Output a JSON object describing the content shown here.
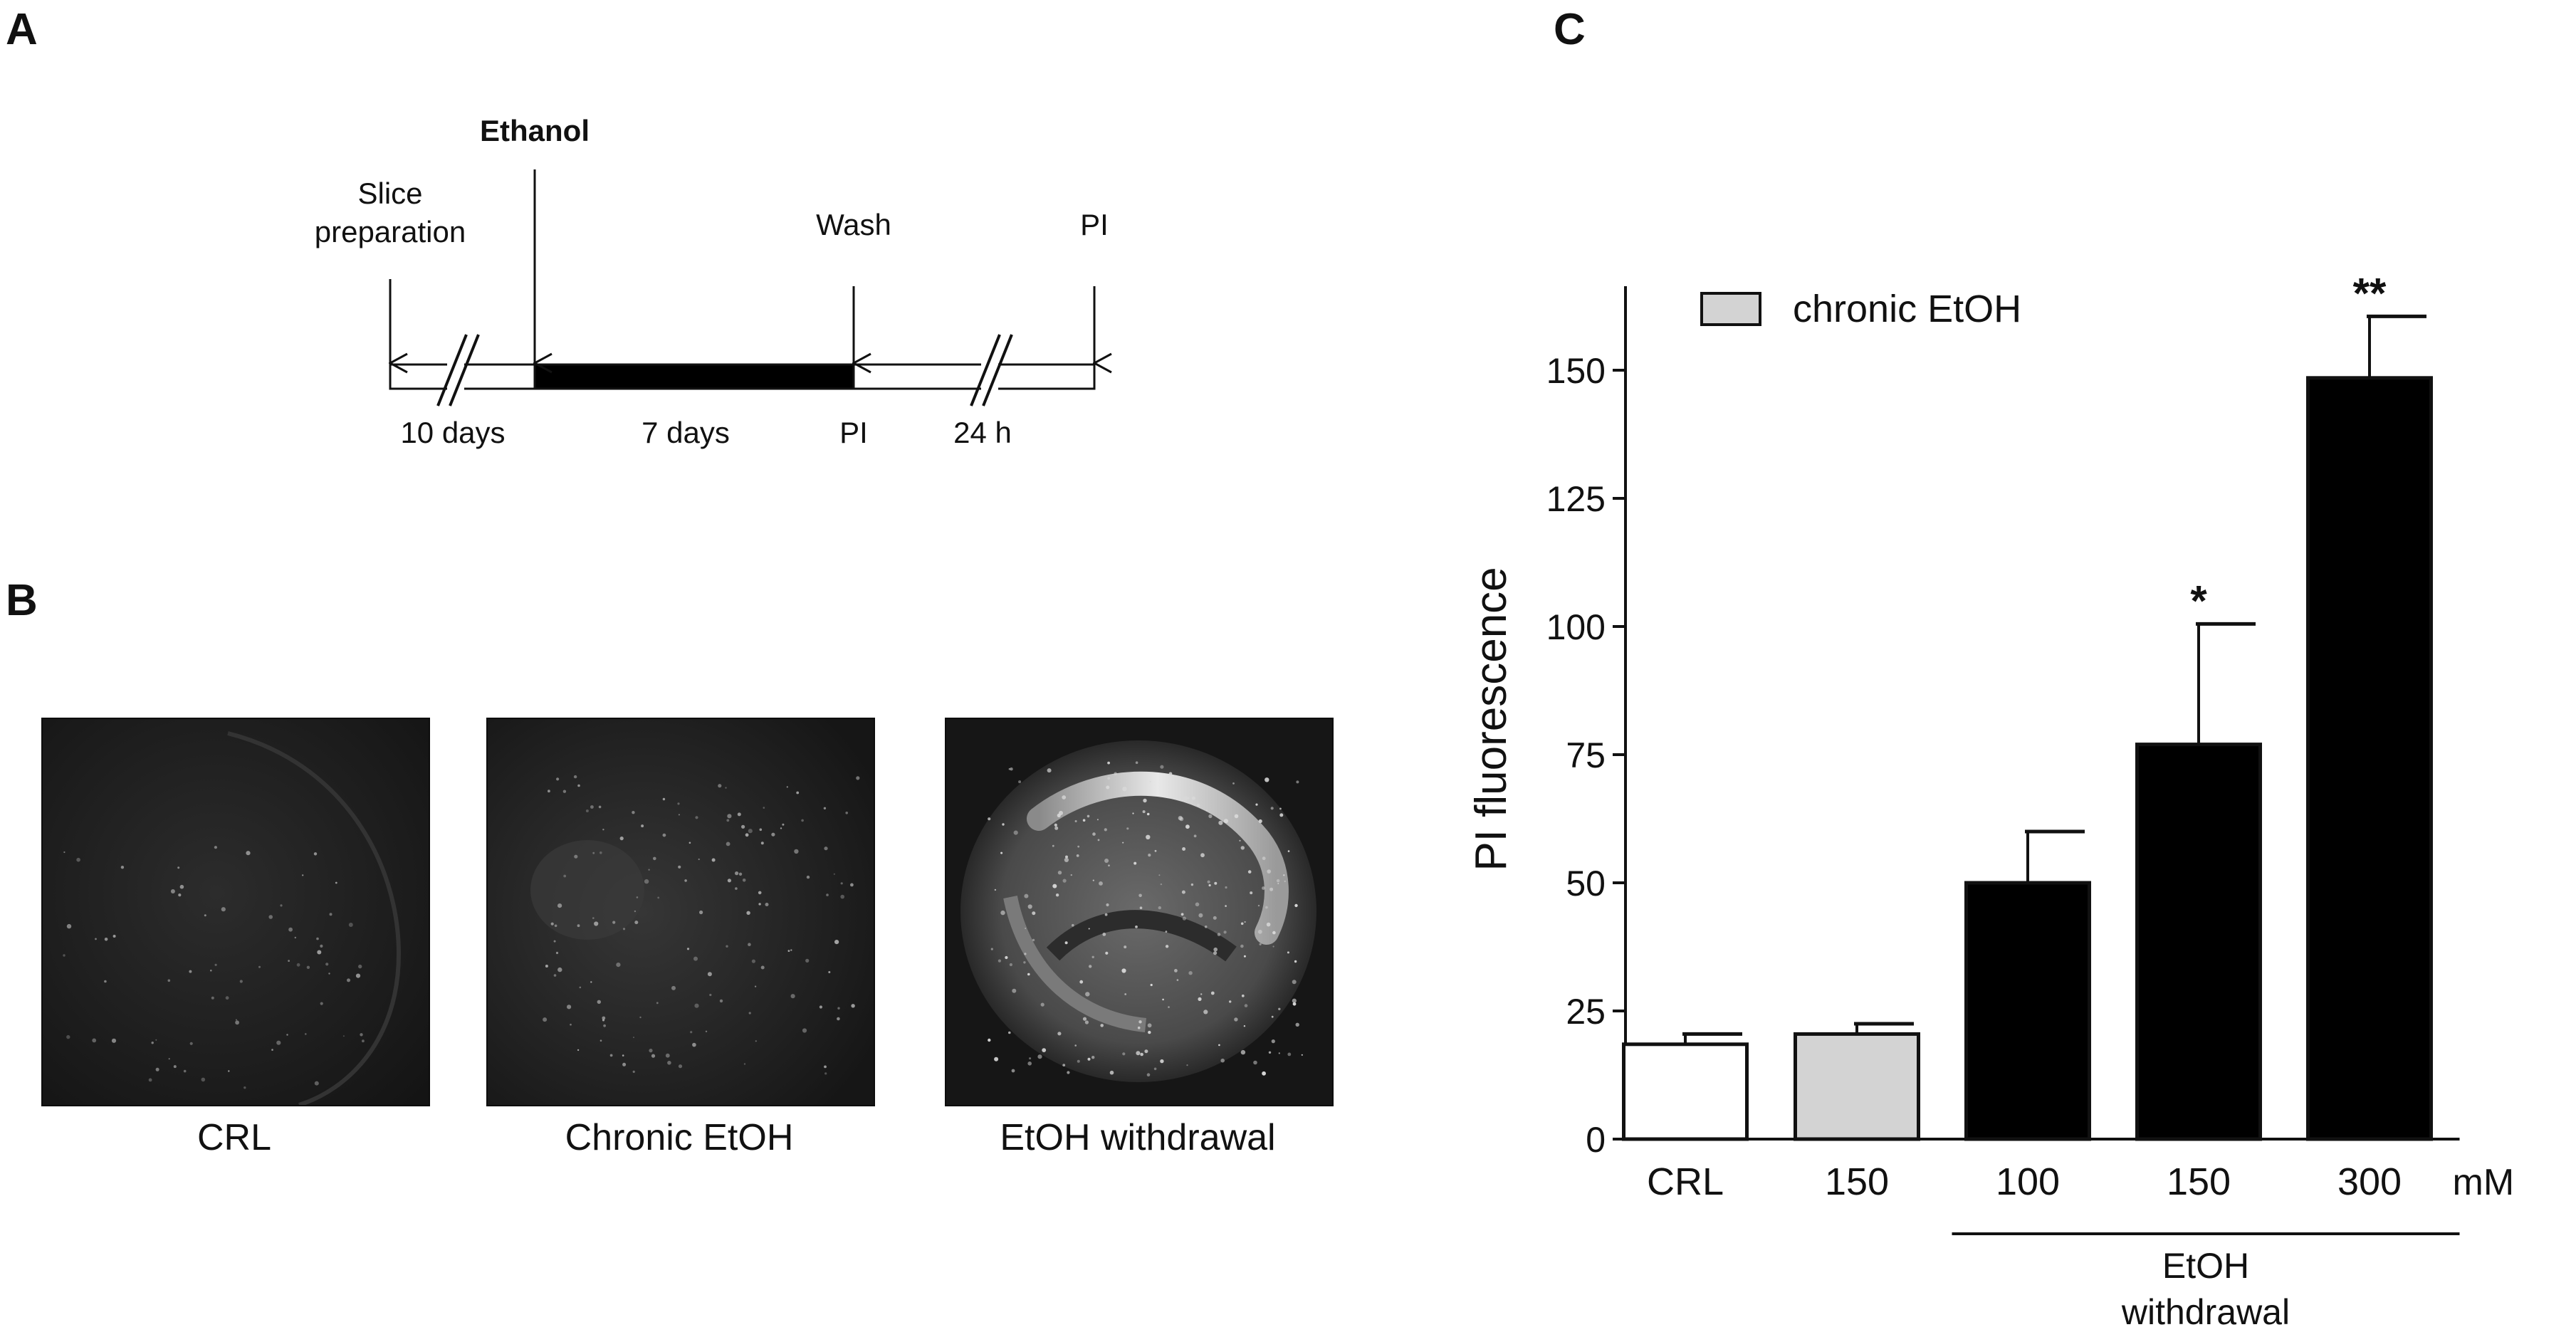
{
  "panels": {
    "a": "A",
    "b": "B",
    "c": "C"
  },
  "timeline": {
    "slice_line1": "Slice",
    "slice_line2": "preparation",
    "ethanol": "Ethanol",
    "wash": "Wash",
    "pi_end": "PI",
    "days10": "10 days",
    "days7": "7 days",
    "pi_mid": "PI",
    "h24": "24 h"
  },
  "images": {
    "captions": [
      "CRL",
      "Chronic EtOH",
      "EtOH withdrawal"
    ]
  },
  "chart_data": {
    "type": "bar",
    "categories": [
      "CRL",
      "150",
      "100",
      "150",
      "300"
    ],
    "values": [
      18.5,
      20.5,
      50,
      77,
      148.5
    ],
    "errors": [
      2,
      2,
      10,
      23.5,
      12
    ],
    "bar_colors": [
      "#ffffff",
      "#d3d3d3",
      "#000000",
      "#000000",
      "#000000"
    ],
    "significance": [
      "",
      "",
      "",
      "*",
      "**"
    ],
    "ylabel": "PI fluorescence",
    "ylim": [
      0,
      165
    ],
    "yticks": [
      0,
      25,
      50,
      75,
      100,
      125,
      150
    ],
    "unit_label": "mM",
    "legend": {
      "label": "chronic EtOH",
      "color": "#d3d3d3",
      "placement": "top-left"
    },
    "group_label_line1": "EtOH",
    "group_label_line2": "withdrawal",
    "grid": false
  }
}
